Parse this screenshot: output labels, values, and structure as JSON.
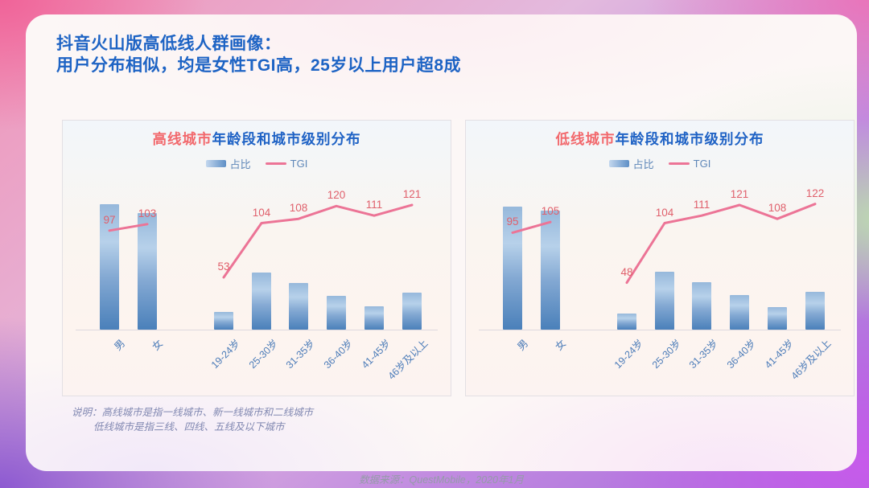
{
  "header": {
    "title_line1": "抖音火山版高低线人群画像：",
    "title_line2": "用户分布相似，均是女性TGI高，25岁以上用户超8成"
  },
  "legend": {
    "bar_label": "占比",
    "line_label": "TGI"
  },
  "chart_data": [
    {
      "type": "bar+line",
      "title_highlight": "高线城市",
      "title_rest": "年龄段和城市级别分布",
      "legend_position": "top",
      "grid": false,
      "categories": [
        "男",
        "女",
        "19-24岁",
        "25-30岁",
        "31-35岁",
        "36-40岁",
        "41-45岁",
        "46岁及以上"
      ],
      "series": [
        {
          "name": "占比",
          "type": "bar",
          "unit": "%",
          "values_estimated": true,
          "values": [
            52,
            48.3,
            7.3,
            23.7,
            19.3,
            14,
            9.7,
            15.3
          ]
        },
        {
          "name": "TGI",
          "type": "line",
          "values_estimated": false,
          "values": [
            97,
            103,
            53,
            104,
            108,
            120,
            111,
            121
          ]
        }
      ]
    },
    {
      "type": "bar+line",
      "title_highlight": "低线城市",
      "title_rest": "年龄段和城市级别分布",
      "legend_position": "top",
      "grid": false,
      "categories": [
        "男",
        "女",
        "19-24岁",
        "25-30岁",
        "31-35岁",
        "36-40岁",
        "41-45岁",
        "46岁及以上"
      ],
      "series": [
        {
          "name": "占比",
          "type": "bar",
          "unit": "%",
          "values_estimated": true,
          "values": [
            51,
            49.3,
            6.7,
            24,
            19.7,
            14.3,
            9.3,
            15.7
          ]
        },
        {
          "name": "TGI",
          "type": "line",
          "values_estimated": false,
          "values": [
            95,
            105,
            48,
            104,
            111,
            121,
            108,
            122
          ]
        }
      ]
    }
  ],
  "notes": {
    "line1": "说明：高线城市是指一线城市、新一线城市和二线城市",
    "line2": "低线城市是指三线、四线、五线及以下城市"
  },
  "source": "数据来源：QuestMobile，2020年1月",
  "colors": {
    "title_blue": "#1d63c4",
    "accent_red": "#f2696d",
    "tgi_line_pink": "#ec7496",
    "tgi_label_red": "#e0606c",
    "bar_blue_top": "#96b8db",
    "bar_blue_bottom": "#4a80ba",
    "axis_label_blue": "#4d7db9",
    "legend_text_blue": "#5e87b8"
  }
}
